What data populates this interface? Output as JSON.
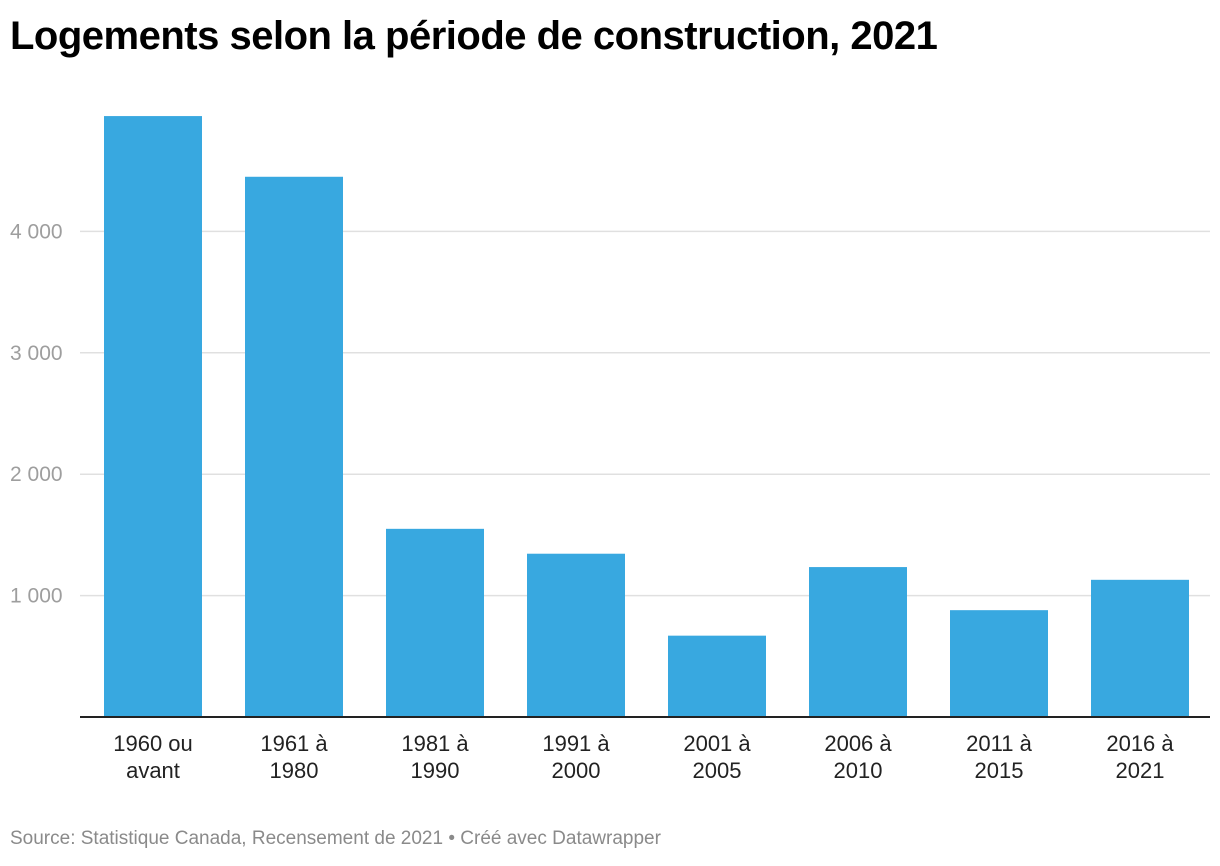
{
  "title": "Logements selon la période de construction, 2021",
  "footer": {
    "source": "Source: Statistique Canada, Recensement de 2021",
    "separator": "•",
    "credit": "Créé avec Datawrapper"
  },
  "colors": {
    "bar": "#38a8e0",
    "grid": "#e0e0e0",
    "axis": "#222222",
    "tick_text": "#9e9e9e"
  },
  "chart_data": {
    "type": "bar",
    "categories": [
      [
        "1960 ou",
        "avant"
      ],
      [
        "1961 à",
        "1980"
      ],
      [
        "1981 à",
        "1990"
      ],
      [
        "1991 à",
        "2000"
      ],
      [
        "2001 à",
        "2005"
      ],
      [
        "2006 à",
        "2010"
      ],
      [
        "2011 à",
        "2015"
      ],
      [
        "2016 à",
        "2021"
      ]
    ],
    "values": [
      4950,
      4450,
      1550,
      1345,
      670,
      1235,
      880,
      1130
    ],
    "yticks": [
      1000,
      2000,
      3000,
      4000
    ],
    "ytick_labels": [
      "1 000",
      "2 000",
      "3 000",
      "4 000"
    ],
    "ylim": [
      0,
      5000
    ],
    "grid": true,
    "xlabel": "",
    "ylabel": ""
  }
}
